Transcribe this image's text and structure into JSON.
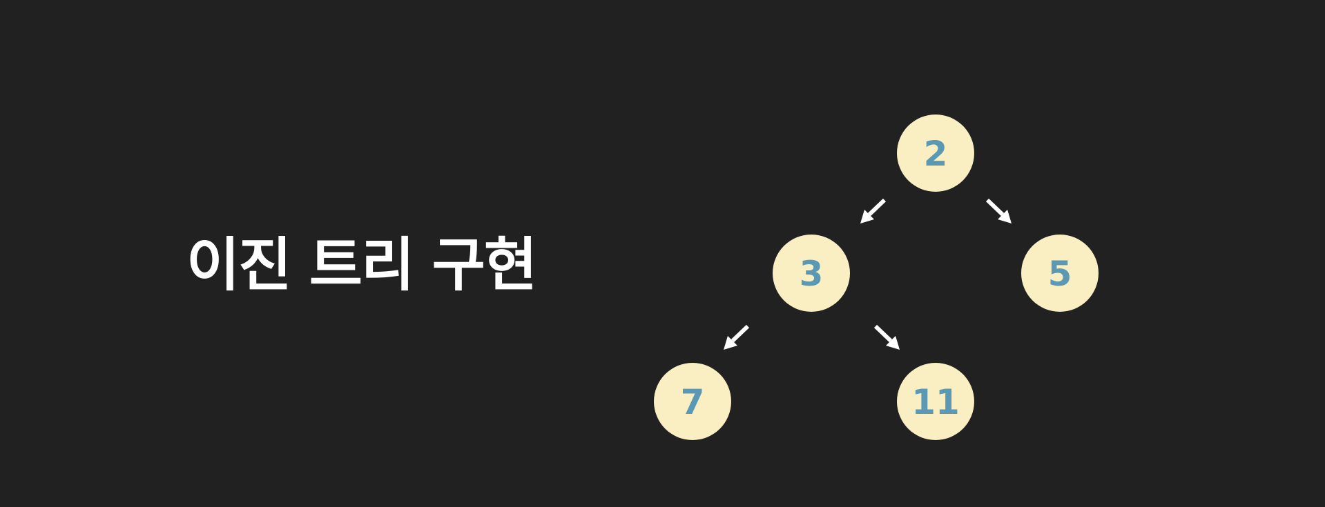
{
  "title": "이진 트리 구현",
  "colors": {
    "background": "#212121",
    "node_fill": "#f9efc3",
    "node_text": "#5b98b3",
    "arrow": "#ffffff",
    "title": "#ffffff"
  },
  "tree": {
    "nodes": [
      {
        "id": "n2",
        "label": "2"
      },
      {
        "id": "n3",
        "label": "3"
      },
      {
        "id": "n5",
        "label": "5"
      },
      {
        "id": "n7",
        "label": "7"
      },
      {
        "id": "n11",
        "label": "11"
      }
    ],
    "edges": [
      {
        "from": "n2",
        "to": "n3"
      },
      {
        "from": "n2",
        "to": "n5"
      },
      {
        "from": "n3",
        "to": "n7"
      },
      {
        "from": "n3",
        "to": "n11"
      }
    ]
  }
}
